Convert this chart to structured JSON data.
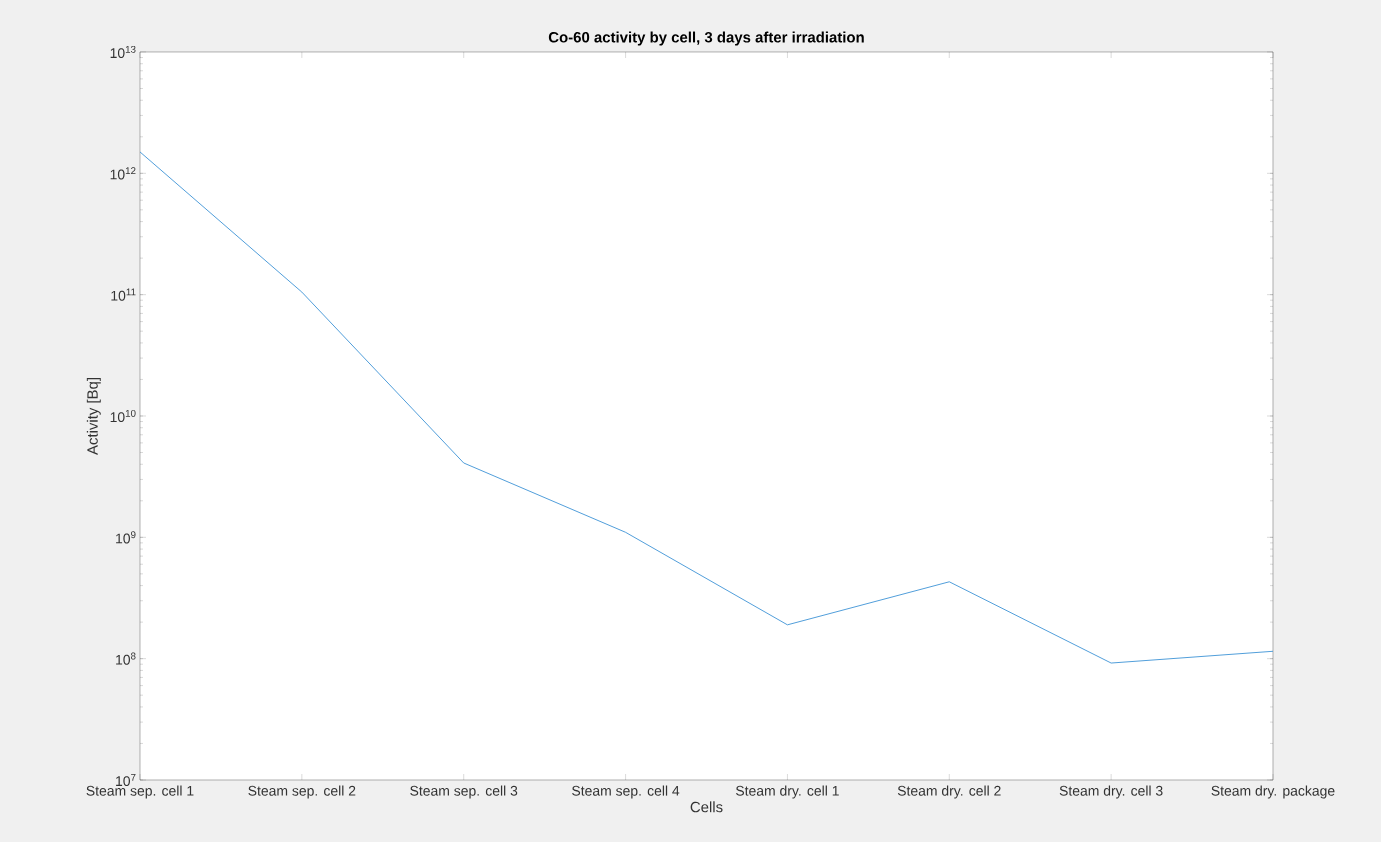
{
  "chart_data": {
    "type": "line",
    "title": "Co-60 activity by cell, 3 days after irradiation",
    "xlabel": "Cells",
    "ylabel": "Activity [Bq]",
    "categories": [
      "Steam sep. cell 1",
      "Steam sep. cell 2",
      "Steam sep. cell 3",
      "Steam sep. cell 4",
      "Steam dry. cell 1",
      "Steam dry. cell 2",
      "Steam dry. cell 3",
      "Steam dry. package"
    ],
    "values": [
      1500000000000.0,
      105000000000.0,
      4100000000.0,
      1100000000.0,
      190000000.0,
      430000000.0,
      92000000.0,
      115000000.0
    ],
    "color": "#3d93d6",
    "log": "y",
    "ylim": [
      10000000.0,
      10000000000000.0
    ],
    "yticks": [
      {
        "value": 10000000.0,
        "label": "10$^{7}$"
      },
      {
        "value": 100000000.0,
        "label": "10$^{8}$"
      },
      {
        "value": 1000000000.0,
        "label": "10$^{9}$"
      },
      {
        "value": 10000000000.0,
        "label": "10$^{10}$"
      },
      {
        "value": 100000000000.0,
        "label": "10$^{11}$"
      },
      {
        "value": 1000000000000.0,
        "label": "10$^{12}$"
      },
      {
        "value": 10000000000000.0,
        "label": "10$^{13}$"
      }
    ]
  }
}
